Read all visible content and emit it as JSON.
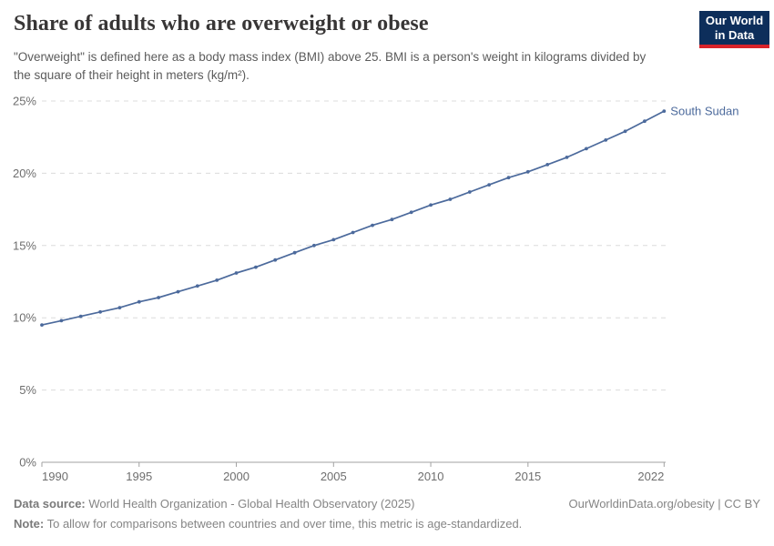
{
  "header": {
    "title": "Share of adults who are overweight or obese",
    "subtitle": "\"Overweight\" is defined here as a body mass index (BMI) above 25. BMI is a person's weight in kilograms divided by the square of their height in meters (kg/m²).",
    "logo": {
      "line1": "Our World",
      "line2": "in Data"
    }
  },
  "chart_data": {
    "type": "line",
    "title": "Share of adults who are overweight or obese",
    "entity": "South Sudan",
    "unit": "%",
    "years": [
      1990,
      1991,
      1992,
      1993,
      1994,
      1995,
      1996,
      1997,
      1998,
      1999,
      2000,
      2001,
      2002,
      2003,
      2004,
      2005,
      2006,
      2007,
      2008,
      2009,
      2010,
      2011,
      2012,
      2013,
      2014,
      2015,
      2016,
      2017,
      2018,
      2019,
      2020,
      2021,
      2022
    ],
    "values": [
      9.5,
      9.8,
      10.1,
      10.4,
      10.7,
      11.1,
      11.4,
      11.8,
      12.2,
      12.6,
      13.1,
      13.5,
      14.0,
      14.5,
      15.0,
      15.4,
      15.9,
      16.4,
      16.8,
      17.3,
      17.8,
      18.2,
      18.7,
      19.2,
      19.7,
      20.1,
      20.6,
      21.1,
      21.7,
      22.3,
      22.9,
      23.6,
      24.3
    ],
    "ylim": [
      0,
      25
    ],
    "yticks": [
      0,
      5,
      10,
      15,
      20,
      25
    ],
    "ytick_labels": [
      "0%",
      "5%",
      "10%",
      "15%",
      "20%",
      "25%"
    ],
    "xticks": [
      1990,
      1995,
      2000,
      2005,
      2010,
      2015,
      2022
    ],
    "grid": "dashed horizontal",
    "legend_position": "end-of-line label",
    "line_color": "#4C6A9C",
    "grid_color": "#dcdcdc",
    "axis_color": "#a2a2a2",
    "tick_label_color": "#6e6e6e"
  },
  "footer": {
    "data_source_label": "Data source:",
    "data_source_text": " World Health Organization - Global Health Observatory (2025)",
    "rights_text": "OurWorldinData.org/obesity | CC BY",
    "note_label": "Note:",
    "note_text": " To allow for comparisons between countries and over time, this metric is age-standardized."
  }
}
